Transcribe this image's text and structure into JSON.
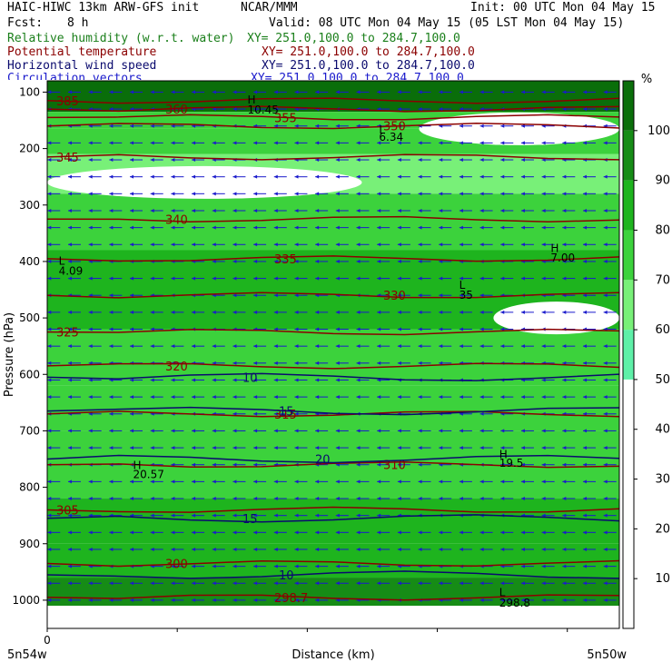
{
  "header": {
    "model": "HAIC-HIWC 13km ARW-GFS init",
    "org": "NCAR/MMM",
    "init": "Init: 00 UTC Mon 04 May 15",
    "fcst_label": "Fcst:",
    "fcst_value": "8 h",
    "valid": "Valid: 08 UTC Mon 04 May 15 (05 LST Mon 04 May 15)"
  },
  "fields": [
    {
      "name": "Relative humidity (w.r.t. water)",
      "xy": "XY= 251.0,100.0 to 284.7,100.0",
      "color": "#1a7f1a"
    },
    {
      "name": "Potential temperature",
      "xy": "XY= 251.0,100.0 to 284.7,100.0",
      "color": "#8b0000"
    },
    {
      "name": "Horizontal wind speed",
      "xy": "XY= 251.0,100.0 to 284.7,100.0",
      "color": "#0a0a6e"
    },
    {
      "name": "Circulation vectors",
      "xy": "XY= 251.0,100.0 to 284.7,100.0",
      "color": "#1a1acc"
    }
  ],
  "chart_data": {
    "type": "heatmap",
    "xlabel": "Distance (km)",
    "ylabel": "Pressure (hPa)",
    "x_ticks": [
      "0"
    ],
    "x_left_label": "5n54w",
    "x_right_label": "5n50w",
    "y_ticks": [
      "100",
      "200",
      "300",
      "400",
      "500",
      "600",
      "700",
      "800",
      "900",
      "1000"
    ],
    "y_range": [
      1050,
      80
    ],
    "colorbar": {
      "unit": "%",
      "ticks": [
        "10",
        "20",
        "30",
        "40",
        "50",
        "60",
        "70",
        "80",
        "90",
        "100"
      ],
      "levels": [
        0,
        50,
        60,
        70,
        80,
        90,
        100,
        110
      ],
      "colors": [
        "#ffffff",
        "#5ef0a8",
        "#78f078",
        "#3cd23c",
        "#1eb41e",
        "#168c16",
        "#0a6e0a",
        "#f08080"
      ]
    },
    "rh_bands": [
      {
        "p_top": 80,
        "p_bot": 135,
        "rh": 105
      },
      {
        "p_top": 135,
        "p_bot": 165,
        "rh": 75
      },
      {
        "p_top": 165,
        "p_bot": 210,
        "rh": 70
      },
      {
        "p_top": 210,
        "p_bot": 280,
        "rh": 65
      },
      {
        "p_top": 280,
        "p_bot": 380,
        "rh": 72
      },
      {
        "p_top": 380,
        "p_bot": 520,
        "rh": 82
      },
      {
        "p_top": 520,
        "p_bot": 620,
        "rh": 74
      },
      {
        "p_top": 620,
        "p_bot": 700,
        "rh": 70
      },
      {
        "p_top": 700,
        "p_bot": 820,
        "rh": 78
      },
      {
        "p_top": 820,
        "p_bot": 900,
        "rh": 85
      },
      {
        "p_top": 900,
        "p_bot": 960,
        "rh": 88
      },
      {
        "p_top": 960,
        "p_bot": 1010,
        "rh": 95
      }
    ],
    "dry_pockets": [
      {
        "p_center": 260,
        "x_start": 0.0,
        "x_end": 0.55
      },
      {
        "p_center": 500,
        "x_start": 0.78,
        "x_end": 1.0
      },
      {
        "p_center": 165,
        "x_start": 0.65,
        "x_end": 1.0
      }
    ],
    "theta_contours": [
      {
        "label": "385",
        "p": 115
      },
      {
        "label": "360",
        "p": 130
      },
      {
        "label": "355",
        "p": 145
      },
      {
        "label": "350",
        "p": 160
      },
      {
        "label": "345",
        "p": 215
      },
      {
        "label": "340",
        "p": 325
      },
      {
        "label": "335",
        "p": 395
      },
      {
        "label": "330",
        "p": 460
      },
      {
        "label": "325",
        "p": 525
      },
      {
        "label": "320",
        "p": 585
      },
      {
        "label": "315",
        "p": 670
      },
      {
        "label": "310",
        "p": 760
      },
      {
        "label": "305",
        "p": 840
      },
      {
        "label": "300",
        "p": 935
      },
      {
        "label": "298.7",
        "p": 995
      }
    ],
    "wind_contours": [
      {
        "label": "10",
        "p": 605
      },
      {
        "label": "15",
        "p": 665
      },
      {
        "label": "20",
        "p": 750
      },
      {
        "label": "15",
        "p": 855
      },
      {
        "label": "10",
        "p": 955
      }
    ],
    "annotations": [
      {
        "text": "H",
        "p": 112,
        "x": 0.35
      },
      {
        "text": "10.45",
        "p": 130,
        "x": 0.35
      },
      {
        "text": "L",
        "p": 165,
        "x": 0.58
      },
      {
        "text": "6.34",
        "p": 178,
        "x": 0.58
      },
      {
        "text": "H",
        "p": 375,
        "x": 0.88
      },
      {
        "text": "7.00",
        "p": 392,
        "x": 0.88
      },
      {
        "text": "L",
        "p": 398,
        "x": 0.02
      },
      {
        "text": "4.09",
        "p": 415,
        "x": 0.02
      },
      {
        "text": "L",
        "p": 440,
        "x": 0.72
      },
      {
        "text": "35",
        "p": 458,
        "x": 0.72
      },
      {
        "text": "H",
        "p": 760,
        "x": 0.15
      },
      {
        "text": "20.57",
        "p": 776,
        "x": 0.15
      },
      {
        "text": "H",
        "p": 740,
        "x": 0.79
      },
      {
        "text": "19.5",
        "p": 756,
        "x": 0.79
      },
      {
        "text": "L",
        "p": 985,
        "x": 0.79
      },
      {
        "text": "298.8",
        "p": 1003,
        "x": 0.79
      }
    ]
  }
}
